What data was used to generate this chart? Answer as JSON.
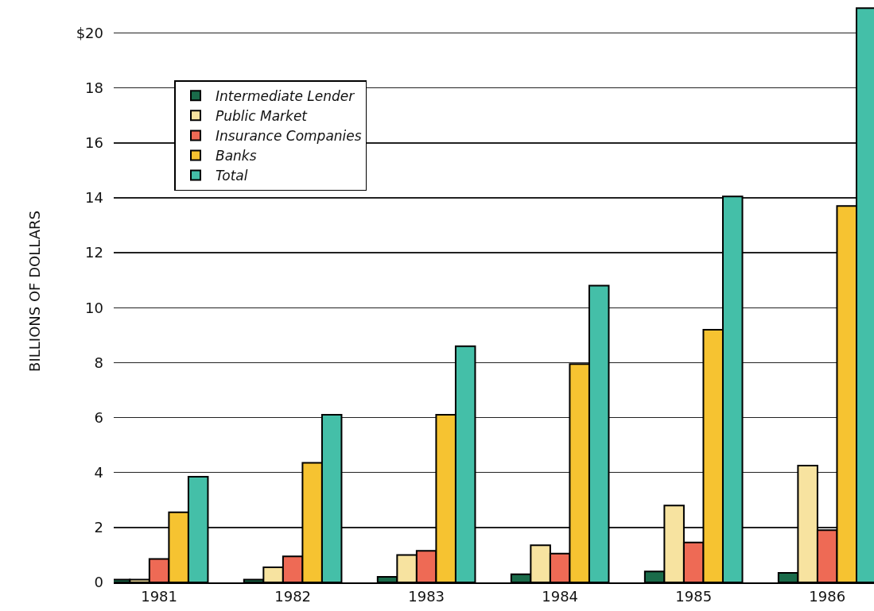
{
  "chart_data": {
    "type": "bar",
    "ylabel": "BILLIONS OF DOLLARS",
    "categories": [
      "1981",
      "1982",
      "1983",
      "1984",
      "1985",
      "1986"
    ],
    "series": [
      {
        "name": "Intermediate Lender",
        "color": "#1a6b4a",
        "values": [
          0.1,
          0.1,
          0.2,
          0.3,
          0.4,
          0.35
        ]
      },
      {
        "name": "Public Market",
        "color": "#f7e3a0",
        "values": [
          0.1,
          0.55,
          1.0,
          1.35,
          2.8,
          4.25
        ]
      },
      {
        "name": "Insurance Companies",
        "color": "#ee6a55",
        "values": [
          0.85,
          0.95,
          1.15,
          1.05,
          1.45,
          1.9
        ]
      },
      {
        "name": "Banks",
        "color": "#f6c331",
        "values": [
          2.55,
          4.35,
          6.1,
          7.95,
          9.2,
          13.7
        ]
      },
      {
        "name": "Total",
        "color": "#44bfa8",
        "values": [
          3.85,
          6.1,
          8.6,
          10.8,
          14.05,
          20.9
        ]
      }
    ],
    "ylim": [
      0,
      21.2
    ],
    "yticks": [
      0,
      2,
      4,
      6,
      8,
      10,
      12,
      14,
      16,
      18,
      {
        "value": 20,
        "label": "$20"
      }
    ],
    "grid": "y",
    "legend": "top left"
  }
}
